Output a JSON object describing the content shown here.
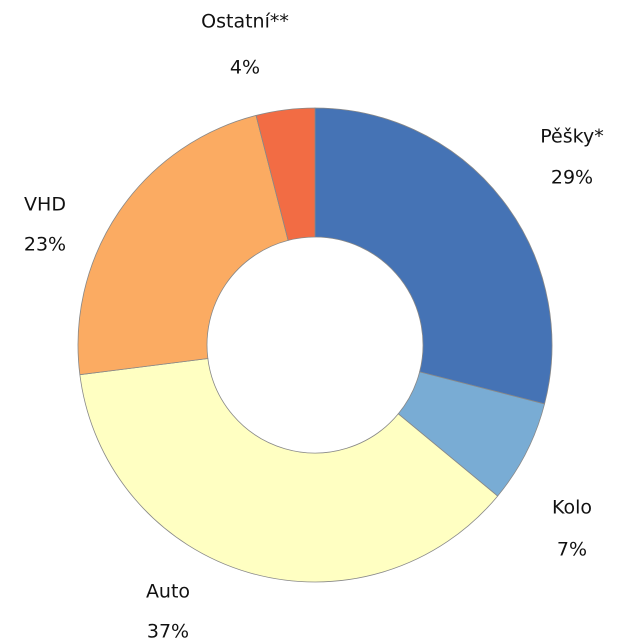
{
  "chart_data": {
    "type": "donut",
    "categories": [
      "Pěšky*",
      "Kolo",
      "Auto",
      "VHD",
      "Ostatní**"
    ],
    "values": [
      29,
      7,
      37,
      23,
      4
    ],
    "value_labels": [
      "29%",
      "7%",
      "37%",
      "23%",
      "4%"
    ],
    "colors": [
      "#4573b5",
      "#79acd4",
      "#ffffc2",
      "#fbab62",
      "#f26c44"
    ]
  }
}
